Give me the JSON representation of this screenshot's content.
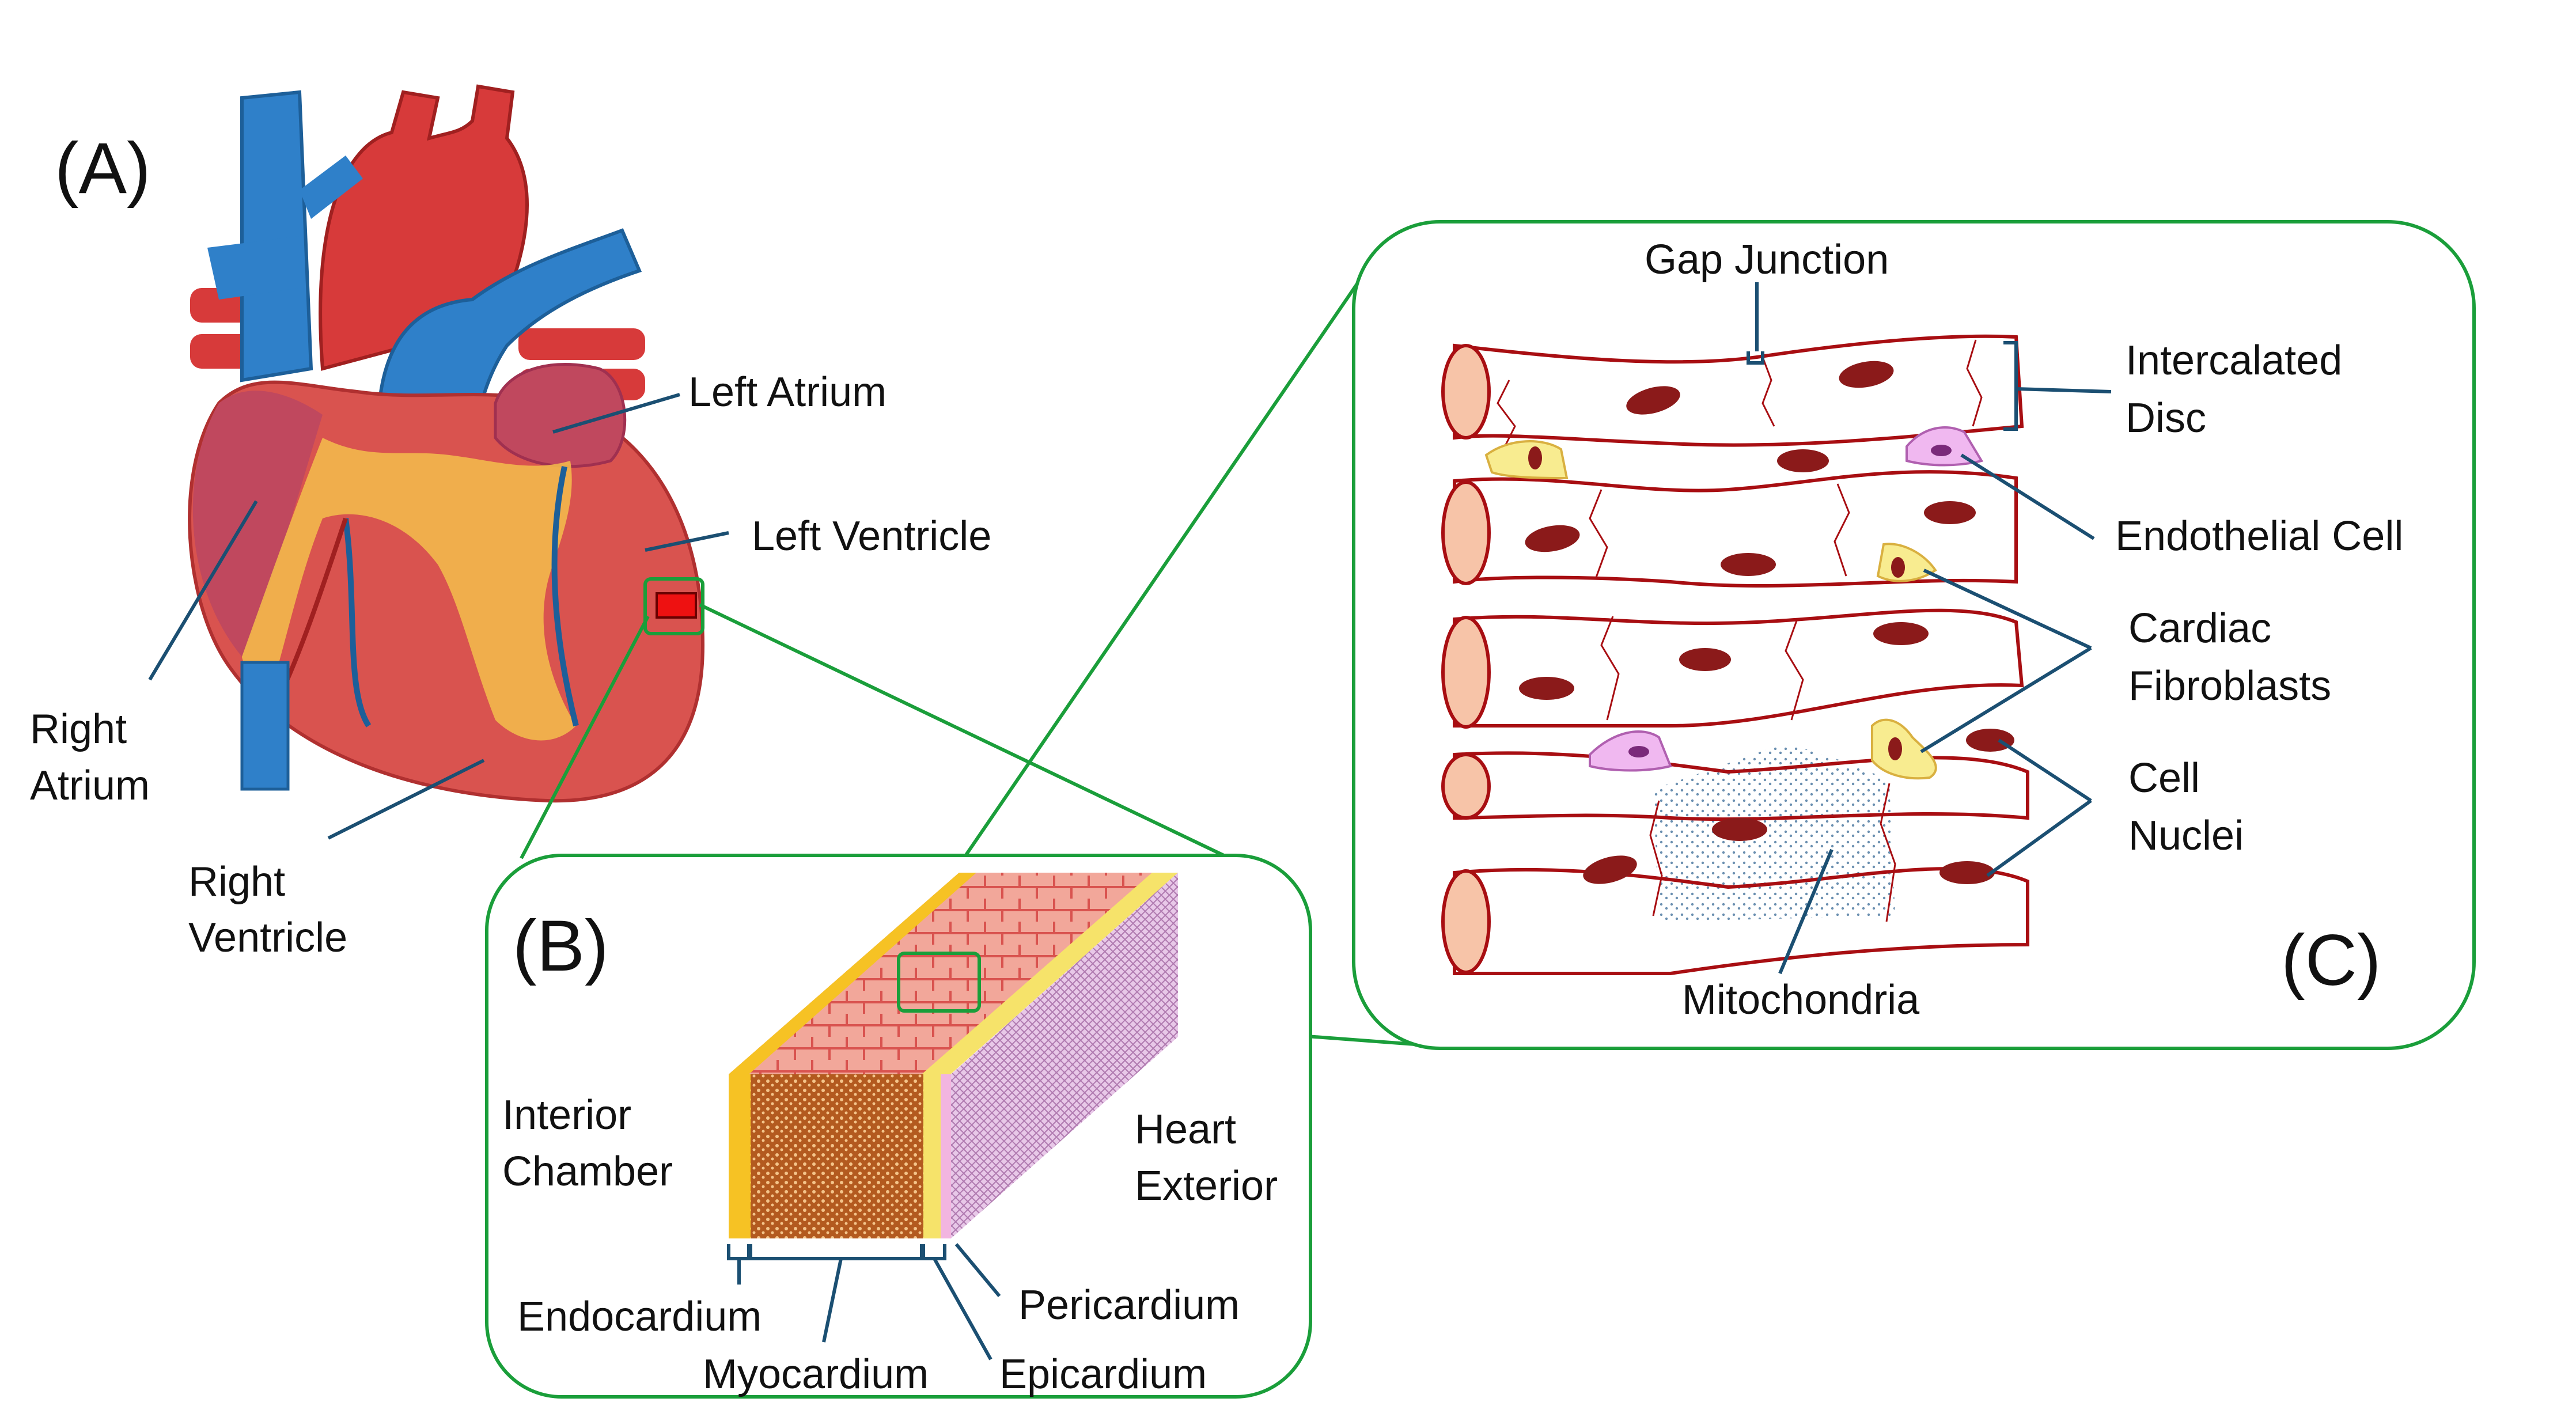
{
  "panels": {
    "a": "(A)",
    "b": "(B)",
    "c": "(C)"
  },
  "heart_labels": {
    "left_atrium": "Left Atrium",
    "left_ventricle": "Left Ventricle",
    "right_atrium_1": "Right",
    "right_atrium_2": "Atrium",
    "right_ventricle_1": "Right",
    "right_ventricle_2": "Ventricle"
  },
  "wall_labels": {
    "interior_1": "Interior",
    "interior_2": "Chamber",
    "exterior_1": "Heart",
    "exterior_2": "Exterior",
    "endocardium": "Endocardium",
    "myocardium": "Myocardium",
    "pericardium": "Pericardium",
    "epicardium": "Epicardium"
  },
  "tissue_labels": {
    "gap_junction": "Gap Junction",
    "intercalated_1": "Intercalated",
    "intercalated_2": "Disc",
    "endothelial": "Endothelial Cell",
    "fibroblasts_1": "Cardiac",
    "fibroblasts_2": "Fibroblasts",
    "nuclei_1": "Cell",
    "nuclei_2": "Nuclei",
    "mitochondria": "Mitochondria"
  },
  "colors": {
    "heart_red": "#d9534f",
    "vessel_blue": "#2f80c9",
    "callout_green": "#1a9e3a",
    "muscle_outline": "#a80e12",
    "nucleus": "#8b1a1a",
    "leader": "#1b4f72"
  }
}
